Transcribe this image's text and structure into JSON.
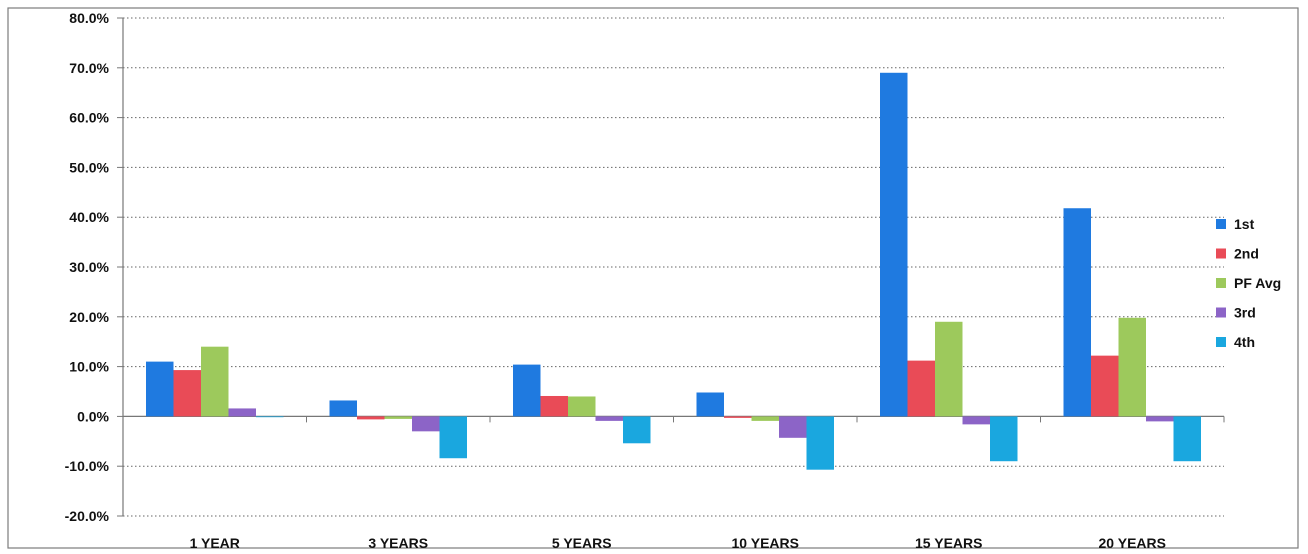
{
  "chart_data": {
    "type": "bar",
    "categories": [
      "1 YEAR",
      "3 YEARS",
      "5 YEARS",
      "10 YEARS",
      "15 YEARS",
      "20 YEARS"
    ],
    "series": [
      {
        "name": "1st",
        "color": "#1f7ae0",
        "values": [
          11.0,
          3.2,
          10.4,
          4.8,
          69.0,
          41.8
        ]
      },
      {
        "name": "2nd",
        "color": "#e94b57",
        "values": [
          9.3,
          -0.6,
          4.1,
          -0.3,
          11.2,
          12.2
        ]
      },
      {
        "name": "PF Avg",
        "color": "#9dc95c",
        "values": [
          14.0,
          -0.5,
          4.0,
          -0.9,
          19.0,
          19.8
        ]
      },
      {
        "name": "3rd",
        "color": "#8c64c7",
        "values": [
          1.6,
          -3.0,
          -0.9,
          -4.3,
          -1.6,
          -1.0
        ]
      },
      {
        "name": "4th",
        "color": "#1aa7df",
        "values": [
          0.0,
          -8.4,
          -5.4,
          -10.7,
          -9.0,
          -9.0
        ]
      }
    ],
    "yticks": [
      "80.0%",
      "70.0%",
      "60.0%",
      "50.0%",
      "40.0%",
      "30.0%",
      "20.0%",
      "10.0%",
      "0.0%",
      "-10.0%",
      "-20.0%"
    ],
    "ylim": [
      -20,
      80
    ],
    "grid": true,
    "legend_position": "right"
  }
}
